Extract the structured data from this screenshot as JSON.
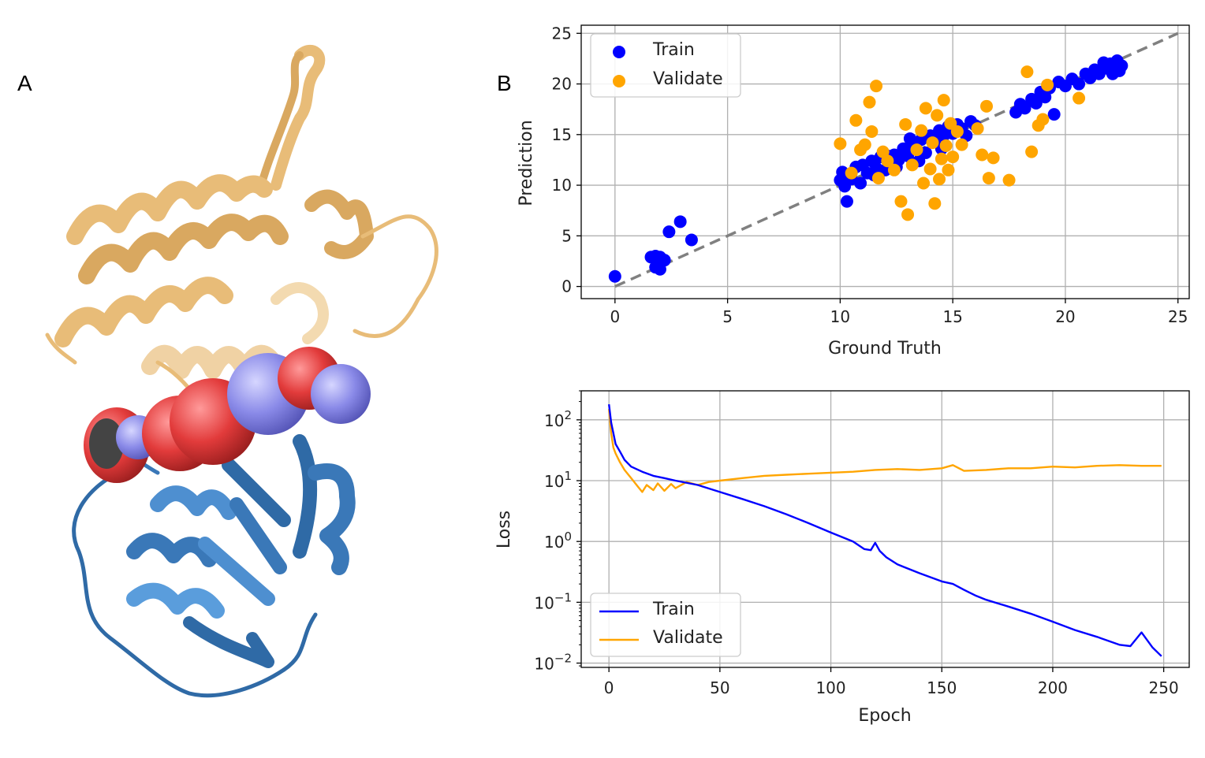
{
  "figure": {
    "panel_a_label": "A",
    "panel_b_label": "B"
  },
  "colors": {
    "train": "#0000ff",
    "validate": "#ffa500",
    "identity": "#808080",
    "protein_top": "#e8bc78",
    "protein_bottom": "#3a78b8",
    "sphere_red": "#e23b3b",
    "sphere_purple": "#8a8ae8"
  },
  "chart_data": [
    {
      "type": "scatter",
      "xlabel": "Ground Truth",
      "ylabel": "Prediction",
      "xlim": [
        -1.5,
        25.5
      ],
      "ylim": [
        -1.2,
        25.8
      ],
      "xticks": [
        0,
        5,
        10,
        15,
        20,
        25
      ],
      "yticks": [
        0,
        5,
        10,
        15,
        20,
        25
      ],
      "grid": true,
      "legend": "top-left",
      "identity_line": [
        [
          0,
          0
        ],
        [
          25,
          25
        ]
      ],
      "series": [
        {
          "name": "Train",
          "color_key": "train",
          "points": [
            [
              0,
              1.0
            ],
            [
              1.6,
              2.9
            ],
            [
              1.8,
              3.0
            ],
            [
              2.0,
              2.9
            ],
            [
              1.8,
              1.9
            ],
            [
              2.0,
              1.7
            ],
            [
              2.2,
              2.6
            ],
            [
              2.4,
              5.4
            ],
            [
              2.9,
              6.4
            ],
            [
              3.4,
              4.6
            ],
            [
              10.0,
              10.5
            ],
            [
              10.1,
              11.3
            ],
            [
              10.2,
              9.9
            ],
            [
              10.3,
              8.4
            ],
            [
              10.4,
              11.0
            ],
            [
              10.5,
              10.6
            ],
            [
              10.7,
              11.8
            ],
            [
              10.9,
              10.2
            ],
            [
              11.0,
              12.0
            ],
            [
              11.2,
              11.2
            ],
            [
              11.4,
              12.4
            ],
            [
              11.6,
              11.7
            ],
            [
              11.8,
              12.8
            ],
            [
              12.0,
              11.5
            ],
            [
              12.2,
              12.3
            ],
            [
              12.4,
              13.0
            ],
            [
              12.6,
              12.5
            ],
            [
              12.8,
              13.6
            ],
            [
              13.0,
              12.9
            ],
            [
              13.2,
              14.0
            ],
            [
              13.4,
              13.5
            ],
            [
              13.6,
              14.5
            ],
            [
              13.8,
              13.2
            ],
            [
              14.0,
              14.9
            ],
            [
              14.2,
              14.3
            ],
            [
              14.4,
              15.4
            ],
            [
              14.6,
              14.9
            ],
            [
              14.8,
              15.8
            ],
            [
              15.0,
              15.1
            ],
            [
              15.2,
              16.0
            ],
            [
              15.4,
              15.6
            ],
            [
              15.6,
              14.9
            ],
            [
              15.8,
              16.3
            ],
            [
              16.0,
              15.9
            ],
            [
              11.5,
              11.0
            ],
            [
              12.5,
              11.8
            ],
            [
              13.5,
              12.4
            ],
            [
              14.5,
              13.6
            ],
            [
              13.1,
              14.6
            ],
            [
              12.1,
              12.9
            ],
            [
              17.8,
              17.2
            ],
            [
              18.0,
              18.0
            ],
            [
              18.2,
              17.6
            ],
            [
              18.5,
              18.5
            ],
            [
              18.7,
              18.1
            ],
            [
              18.9,
              19.2
            ],
            [
              19.1,
              18.7
            ],
            [
              19.3,
              19.6
            ],
            [
              19.5,
              17.0
            ],
            [
              19.7,
              20.2
            ],
            [
              20.0,
              19.8
            ],
            [
              20.3,
              20.5
            ],
            [
              20.6,
              20.0
            ],
            [
              20.9,
              21.0
            ],
            [
              21.1,
              20.6
            ],
            [
              21.3,
              21.4
            ],
            [
              21.5,
              21.0
            ],
            [
              21.7,
              22.1
            ],
            [
              21.9,
              21.5
            ],
            [
              22.1,
              21.0
            ],
            [
              22.3,
              22.3
            ],
            [
              22.5,
              21.8
            ],
            [
              22.4,
              21.3
            ],
            [
              22.0,
              22.0
            ]
          ]
        },
        {
          "name": "Validate",
          "color_key": "validate",
          "points": [
            [
              10.0,
              14.1
            ],
            [
              10.5,
              11.2
            ],
            [
              10.7,
              16.4
            ],
            [
              10.9,
              13.5
            ],
            [
              11.1,
              14.0
            ],
            [
              11.3,
              18.2
            ],
            [
              11.4,
              15.3
            ],
            [
              11.6,
              19.8
            ],
            [
              11.7,
              10.7
            ],
            [
              11.9,
              13.3
            ],
            [
              12.1,
              12.4
            ],
            [
              12.4,
              11.5
            ],
            [
              12.7,
              8.4
            ],
            [
              12.9,
              16.0
            ],
            [
              13.0,
              7.1
            ],
            [
              13.2,
              12.0
            ],
            [
              13.4,
              13.5
            ],
            [
              13.6,
              15.4
            ],
            [
              13.7,
              10.2
            ],
            [
              13.8,
              17.6
            ],
            [
              14.0,
              11.6
            ],
            [
              14.1,
              14.2
            ],
            [
              14.2,
              8.2
            ],
            [
              14.3,
              16.9
            ],
            [
              14.4,
              10.6
            ],
            [
              14.5,
              12.6
            ],
            [
              14.6,
              18.4
            ],
            [
              14.7,
              13.9
            ],
            [
              14.8,
              11.5
            ],
            [
              14.9,
              16.1
            ],
            [
              15.0,
              12.8
            ],
            [
              15.2,
              15.3
            ],
            [
              15.4,
              14.0
            ],
            [
              16.1,
              15.6
            ],
            [
              16.3,
              13.0
            ],
            [
              16.5,
              17.8
            ],
            [
              16.6,
              10.7
            ],
            [
              16.8,
              12.7
            ],
            [
              17.5,
              10.5
            ],
            [
              18.3,
              21.2
            ],
            [
              18.5,
              13.3
            ],
            [
              18.8,
              15.9
            ],
            [
              19.0,
              16.5
            ],
            [
              19.2,
              19.9
            ],
            [
              20.6,
              18.6
            ]
          ]
        }
      ]
    },
    {
      "type": "line",
      "xlabel": "Epoch",
      "ylabel": "Loss",
      "yscale": "log",
      "xlim": [
        -12.5,
        261.5
      ],
      "ylim": [
        0.0085,
        300
      ],
      "xticks": [
        0,
        50,
        100,
        150,
        200,
        250
      ],
      "ytick_exponents": [
        -2,
        -1,
        0,
        1,
        2
      ],
      "ytick_base": "10",
      "grid": true,
      "legend": "bottom-left",
      "series": [
        {
          "name": "Train",
          "color_key": "train",
          "x": [
            0,
            1,
            2,
            3,
            5,
            7,
            10,
            15,
            20,
            25,
            30,
            40,
            50,
            60,
            70,
            80,
            90,
            100,
            110,
            115,
            118,
            120,
            122,
            125,
            130,
            140,
            150,
            155,
            160,
            165,
            170,
            180,
            190,
            200,
            210,
            220,
            230,
            235,
            240,
            245,
            249
          ],
          "y": [
            180,
            90,
            60,
            40,
            30,
            22,
            17,
            14,
            12,
            11,
            10,
            8.5,
            6.5,
            5,
            3.8,
            2.8,
            2.0,
            1.4,
            1.0,
            0.75,
            0.72,
            0.95,
            0.7,
            0.55,
            0.42,
            0.3,
            0.22,
            0.2,
            0.16,
            0.13,
            0.11,
            0.085,
            0.065,
            0.048,
            0.035,
            0.027,
            0.02,
            0.019,
            0.032,
            0.018,
            0.013
          ]
        },
        {
          "name": "Validate",
          "color_key": "validate",
          "x": [
            0,
            1,
            2,
            3,
            5,
            7,
            10,
            13,
            15,
            17,
            20,
            22,
            25,
            28,
            30,
            35,
            40,
            45,
            50,
            60,
            70,
            80,
            90,
            100,
            110,
            120,
            130,
            140,
            150,
            155,
            160,
            170,
            180,
            190,
            200,
            210,
            220,
            230,
            240,
            249
          ],
          "y": [
            150,
            60,
            35,
            28,
            20,
            15,
            11,
            8,
            6.5,
            8.5,
            7,
            9,
            6.8,
            8.8,
            7.5,
            9.5,
            8.5,
            9.5,
            10,
            11,
            12,
            12.5,
            13,
            13.5,
            14,
            15,
            15.5,
            15,
            16,
            18,
            14.5,
            15,
            16,
            16,
            17,
            16.5,
            17.5,
            18,
            17.5,
            17.5
          ]
        }
      ]
    }
  ]
}
